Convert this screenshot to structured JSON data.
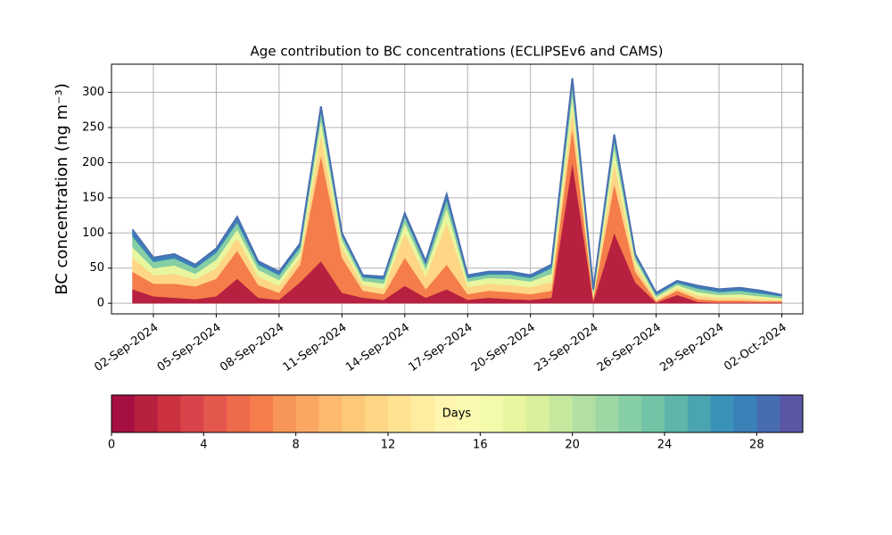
{
  "chart_data": {
    "type": "stacked_area",
    "title": "Age contribution to BC concentrations (ECLIPSEv6 and CAMS)",
    "y_label": "BC concentration (ng m⁻³)",
    "x": [
      "2024-09-01",
      "2024-09-02",
      "2024-09-03",
      "2024-09-04",
      "2024-09-05",
      "2024-09-06",
      "2024-09-07",
      "2024-09-08",
      "2024-09-09",
      "2024-09-10",
      "2024-09-11",
      "2024-09-12",
      "2024-09-13",
      "2024-09-14",
      "2024-09-15",
      "2024-09-16",
      "2024-09-17",
      "2024-09-18",
      "2024-09-19",
      "2024-09-20",
      "2024-09-21",
      "2024-09-22",
      "2024-09-23",
      "2024-09-24",
      "2024-09-25",
      "2024-09-26",
      "2024-09-27",
      "2024-09-28",
      "2024-09-29",
      "2024-09-30",
      "2024-10-01",
      "2024-10-02"
    ],
    "series": [
      {
        "color": "#b8203f",
        "values": [
          20,
          10,
          8,
          6,
          10,
          35,
          8,
          5,
          30,
          60,
          15,
          8,
          5,
          25,
          8,
          20,
          5,
          8,
          6,
          5,
          8,
          200,
          3,
          100,
          30,
          1,
          12,
          2,
          1,
          1,
          1,
          1
        ]
      },
      {
        "color": "#f47d4b",
        "values": [
          25,
          18,
          20,
          18,
          25,
          40,
          18,
          10,
          25,
          150,
          50,
          10,
          8,
          40,
          12,
          35,
          8,
          10,
          10,
          8,
          10,
          50,
          4,
          70,
          15,
          2,
          6,
          4,
          3,
          3,
          2,
          2
        ]
      },
      {
        "color": "#fed685",
        "values": [
          20,
          12,
          14,
          10,
          15,
          18,
          12,
          10,
          10,
          30,
          15,
          8,
          8,
          35,
          18,
          60,
          10,
          10,
          10,
          10,
          12,
          25,
          4,
          30,
          10,
          3,
          4,
          5,
          4,
          4,
          3,
          2
        ]
      },
      {
        "color": "#e8f69f",
        "values": [
          15,
          10,
          12,
          8,
          12,
          12,
          10,
          8,
          8,
          20,
          10,
          6,
          7,
          14,
          10,
          20,
          8,
          8,
          9,
          8,
          12,
          20,
          4,
          20,
          7,
          3,
          4,
          5,
          4,
          5,
          4,
          2
        ]
      },
      {
        "color": "#86cea4",
        "values": [
          15,
          9,
          10,
          8,
          10,
          10,
          7,
          7,
          7,
          12,
          6,
          5,
          6,
          9,
          7,
          12,
          5,
          5,
          6,
          5,
          8,
          15,
          3,
          12,
          5,
          3,
          3,
          5,
          4,
          5,
          4,
          3
        ]
      },
      {
        "color": "#3a80b9",
        "values": [
          10,
          6,
          6,
          5,
          6,
          8,
          5,
          5,
          5,
          8,
          4,
          3,
          4,
          5,
          5,
          8,
          4,
          4,
          4,
          4,
          5,
          10,
          2,
          8,
          3,
          3,
          3,
          4,
          4,
          4,
          4,
          2
        ]
      }
    ],
    "outline_color": "#4a6fb0",
    "xlim": [
      "2024-08-31",
      "2024-10-03"
    ],
    "xticks": [
      {
        "value": "2024-09-02",
        "label": "02-Sep-2024"
      },
      {
        "value": "2024-09-05",
        "label": "05-Sep-2024"
      },
      {
        "value": "2024-09-08",
        "label": "08-Sep-2024"
      },
      {
        "value": "2024-09-11",
        "label": "11-Sep-2024"
      },
      {
        "value": "2024-09-14",
        "label": "14-Sep-2024"
      },
      {
        "value": "2024-09-17",
        "label": "17-Sep-2024"
      },
      {
        "value": "2024-09-20",
        "label": "20-Sep-2024"
      },
      {
        "value": "2024-09-23",
        "label": "23-Sep-2024"
      },
      {
        "value": "2024-09-26",
        "label": "26-Sep-2024"
      },
      {
        "value": "2024-09-29",
        "label": "29-Sep-2024"
      },
      {
        "value": "2024-10-02",
        "label": "02-Oct-2024"
      }
    ],
    "ylim": [
      -15,
      340
    ],
    "yticks": [
      0,
      50,
      100,
      150,
      200,
      250,
      300
    ],
    "grid": true,
    "colorbar": {
      "label": "Days",
      "lim": [
        0,
        30
      ],
      "ticks": [
        0,
        4,
        8,
        12,
        16,
        20,
        24,
        28
      ],
      "colors": [
        "#a50f43",
        "#b8203f",
        "#cb313e",
        "#d9444a",
        "#e4574c",
        "#ed6a4a",
        "#f47d4b",
        "#f89558",
        "#fba764",
        "#fdb96e",
        "#fdc979",
        "#fed685",
        "#fee291",
        "#feec9f",
        "#fff5ae",
        "#fbfab1",
        "#f3faaa",
        "#e8f69f",
        "#d9f09c",
        "#c6e89f",
        "#b2e0a2",
        "#9dd7a4",
        "#86cea4",
        "#71c4a5",
        "#5db6a9",
        "#4aa5b0",
        "#3a92b8",
        "#3a80b9",
        "#476db1",
        "#5a56a5"
      ]
    }
  }
}
